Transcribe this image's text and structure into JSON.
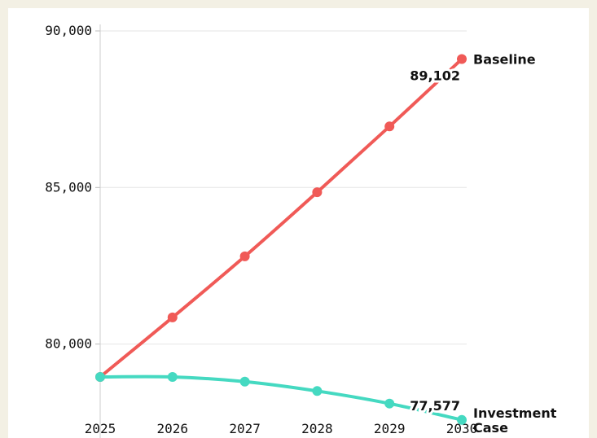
{
  "chart_data": {
    "type": "line",
    "title": "",
    "xlabel": "",
    "ylabel": "",
    "x": [
      2025,
      2026,
      2027,
      2028,
      2029,
      2030
    ],
    "x_tick_labels": [
      "2025",
      "2026",
      "2027",
      "2028",
      "2029",
      "2030"
    ],
    "y_ticks": [
      80000,
      85000,
      90000
    ],
    "y_tick_labels": [
      "80,000",
      "85,000",
      "90,000"
    ],
    "ylim": [
      77000,
      90000
    ],
    "xlim": [
      2025,
      2030
    ],
    "grid": true,
    "series": [
      {
        "name": "Baseline",
        "color": "#f05a57",
        "values": [
          78950,
          80850,
          82800,
          84850,
          86950,
          89102
        ],
        "end_value_label": "89,102"
      },
      {
        "name": "Investment Case",
        "name_lines": [
          "Investment",
          "Case"
        ],
        "color": "#45d9c1",
        "values": [
          78950,
          78950,
          78800,
          78500,
          78100,
          77577
        ],
        "end_value_label": "77,577"
      }
    ]
  }
}
